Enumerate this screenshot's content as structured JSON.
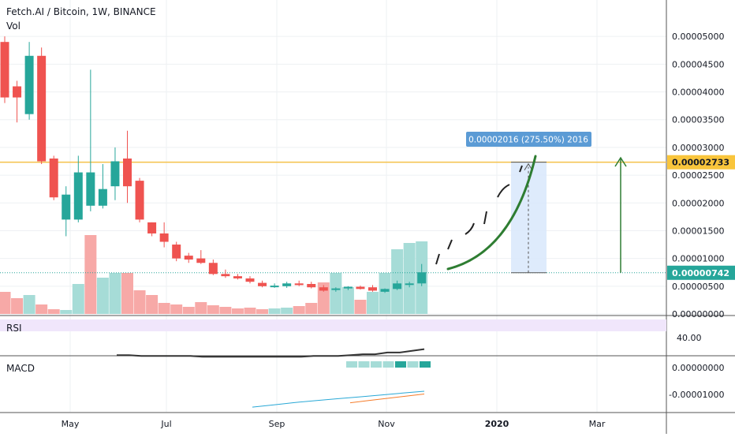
{
  "title": "Fetch.AI / Bitcoin, 1W, BINANCE",
  "volume_label": "Vol",
  "rsi_label": "RSI",
  "macd_label": "MACD",
  "colors": {
    "up": "#26a69a",
    "down": "#ef5350",
    "vol_up": "#a6dcd7",
    "vol_down": "#f7a9a7",
    "resistance": "#f5c14a",
    "projection": "#2e7d32",
    "measure_fill": "#d8e8fb",
    "measure_label_bg": "#5b9bd5",
    "rsi_band": "#f0e6fb",
    "rsi_line": "#333333",
    "macd_line": "#29a8d6",
    "signal_line": "#f57c2a",
    "current_price_bg": "#26a69a",
    "resistance_price_bg": "#f9c53c",
    "grid": "#eef0f3"
  },
  "price_axis": {
    "ticks": [
      "0.00005000",
      "0.00004500",
      "0.00004000",
      "0.00003500",
      "0.00003000",
      "0.00002500",
      "0.00002000",
      "0.00001500",
      "0.00001000",
      "0.00000500",
      "0.00000000"
    ],
    "current_price_label": "0.00000742",
    "resistance_label": "0.00002733"
  },
  "measure_label": "0.00002016 (275.50%) 2016",
  "rsi_axis": {
    "ticks": [
      "40.00"
    ]
  },
  "macd_axis": {
    "ticks": [
      "0.00000000",
      "-0.00001000"
    ]
  },
  "x_axis": {
    "ticks": [
      "May",
      "Jul",
      "Sep",
      "Nov",
      "2020",
      "Mar"
    ]
  },
  "chart_data": {
    "type": "candlestick",
    "title": "Fetch.AI / Bitcoin, 1W, BINANCE",
    "y_range": [
      0,
      5.4e-05
    ],
    "candles": [
      {
        "o": 4.9e-05,
        "h": 5e-05,
        "l": 3.8e-05,
        "c": 3.9e-05
      },
      {
        "o": 4.1e-05,
        "h": 4.2e-05,
        "l": 3.45e-05,
        "c": 3.9e-05
      },
      {
        "o": 3.6e-05,
        "h": 4.9e-05,
        "l": 3.5e-05,
        "c": 4.65e-05
      },
      {
        "o": 4.65e-05,
        "h": 4.8e-05,
        "l": 2.7e-05,
        "c": 2.75e-05
      },
      {
        "o": 2.8e-05,
        "h": 2.85e-05,
        "l": 2.05e-05,
        "c": 2.1e-05
      },
      {
        "o": 1.7e-05,
        "h": 2.3e-05,
        "l": 1.4e-05,
        "c": 2.15e-05
      },
      {
        "o": 1.7e-05,
        "h": 2.85e-05,
        "l": 1.65e-05,
        "c": 2.55e-05
      },
      {
        "o": 1.95e-05,
        "h": 4.4e-05,
        "l": 1.85e-05,
        "c": 2.55e-05
      },
      {
        "o": 1.95e-05,
        "h": 2.7e-05,
        "l": 1.9e-05,
        "c": 2.25e-05
      },
      {
        "o": 2.3e-05,
        "h": 3e-05,
        "l": 2.05e-05,
        "c": 2.75e-05
      },
      {
        "o": 2.8e-05,
        "h": 3.3e-05,
        "l": 2e-05,
        "c": 2.3e-05
      },
      {
        "o": 2.4e-05,
        "h": 2.45e-05,
        "l": 1.65e-05,
        "c": 1.7e-05
      },
      {
        "o": 1.65e-05,
        "h": 1.65e-05,
        "l": 1.4e-05,
        "c": 1.45e-05
      },
      {
        "o": 1.45e-05,
        "h": 1.65e-05,
        "l": 1.2e-05,
        "c": 1.3e-05
      },
      {
        "o": 1.25e-05,
        "h": 1.3e-05,
        "l": 9.5e-06,
        "c": 1e-05
      },
      {
        "o": 1.05e-05,
        "h": 1.1e-05,
        "l": 9.2e-06,
        "c": 9.8e-06
      },
      {
        "o": 1e-05,
        "h": 1.15e-05,
        "l": 9e-06,
        "c": 9.2e-06
      },
      {
        "o": 9.2e-06,
        "h": 9.8e-06,
        "l": 7e-06,
        "c": 7.2e-06
      },
      {
        "o": 7.2e-06,
        "h": 8e-06,
        "l": 6.5e-06,
        "c": 6.8e-06
      },
      {
        "o": 6.8e-06,
        "h": 7.2e-06,
        "l": 6.2e-06,
        "c": 6.4e-06
      },
      {
        "o": 6.4e-06,
        "h": 6.8e-06,
        "l": 5.5e-06,
        "c": 5.8e-06
      },
      {
        "o": 5.6e-06,
        "h": 6e-06,
        "l": 4.8e-06,
        "c": 5e-06
      },
      {
        "o": 4.9e-06,
        "h": 5.5e-06,
        "l": 4.7e-06,
        "c": 5.1e-06
      },
      {
        "o": 5e-06,
        "h": 5.8e-06,
        "l": 4.7e-06,
        "c": 5.5e-06
      },
      {
        "o": 5.5e-06,
        "h": 6e-06,
        "l": 5e-06,
        "c": 5.2e-06
      },
      {
        "o": 5.4e-06,
        "h": 5.8e-06,
        "l": 4.6e-06,
        "c": 4.8e-06
      },
      {
        "o": 4.8e-06,
        "h": 5.2e-06,
        "l": 4e-06,
        "c": 4.2e-06
      },
      {
        "o": 4.5e-06,
        "h": 4.8e-06,
        "l": 4e-06,
        "c": 4.6e-06
      },
      {
        "o": 4.6e-06,
        "h": 5e-06,
        "l": 4.3e-06,
        "c": 4.9e-06
      },
      {
        "o": 4.9e-06,
        "h": 5.1e-06,
        "l": 4.4e-06,
        "c": 4.5e-06
      },
      {
        "o": 4.8e-06,
        "h": 5.2e-06,
        "l": 4e-06,
        "c": 4.2e-06
      },
      {
        "o": 4e-06,
        "h": 4.6e-06,
        "l": 3.8e-06,
        "c": 4.5e-06
      },
      {
        "o": 4.5e-06,
        "h": 6e-06,
        "l": 4.3e-06,
        "c": 5.5e-06
      },
      {
        "o": 5.4e-06,
        "h": 5.8e-06,
        "l": 4.8e-06,
        "c": 5.5e-06
      },
      {
        "o": 5.5e-06,
        "h": 9e-06,
        "l": 5e-06,
        "c": 7.5e-06
      }
    ],
    "volume": [
      {
        "v": 0.28,
        "up": false
      },
      {
        "v": 0.2,
        "up": false
      },
      {
        "v": 0.24,
        "up": true
      },
      {
        "v": 0.12,
        "up": false
      },
      {
        "v": 0.06,
        "up": false
      },
      {
        "v": 0.05,
        "up": true
      },
      {
        "v": 0.38,
        "up": true
      },
      {
        "v": 1.0,
        "up": false
      },
      {
        "v": 0.46,
        "up": true
      },
      {
        "v": 0.52,
        "up": true
      },
      {
        "v": 0.52,
        "up": false
      },
      {
        "v": 0.3,
        "up": false
      },
      {
        "v": 0.24,
        "up": false
      },
      {
        "v": 0.14,
        "up": false
      },
      {
        "v": 0.12,
        "up": false
      },
      {
        "v": 0.09,
        "up": false
      },
      {
        "v": 0.15,
        "up": false
      },
      {
        "v": 0.11,
        "up": false
      },
      {
        "v": 0.09,
        "up": false
      },
      {
        "v": 0.07,
        "up": false
      },
      {
        "v": 0.08,
        "up": false
      },
      {
        "v": 0.06,
        "up": false
      },
      {
        "v": 0.07,
        "up": true
      },
      {
        "v": 0.08,
        "up": true
      },
      {
        "v": 0.1,
        "up": false
      },
      {
        "v": 0.14,
        "up": false
      },
      {
        "v": 0.4,
        "up": false
      },
      {
        "v": 0.52,
        "up": true
      },
      {
        "v": 0.34,
        "up": true
      },
      {
        "v": 0.18,
        "up": false
      },
      {
        "v": 0.28,
        "up": true
      },
      {
        "v": 0.52,
        "up": true
      },
      {
        "v": 0.82,
        "up": true
      },
      {
        "v": 0.9,
        "up": true
      },
      {
        "v": 0.92,
        "up": true
      }
    ],
    "current_price": 7.42e-06,
    "resistance_price": 2.733e-05,
    "rsi_y_range": [
      20,
      60
    ],
    "rsi": [
      31,
      31,
      30,
      30,
      30,
      30,
      30,
      29,
      29,
      29,
      29,
      29,
      29,
      29,
      29,
      29,
      30,
      30,
      30,
      31,
      32,
      32,
      34,
      34,
      36,
      38
    ],
    "macd_y_range": [
      -1.6e-05,
      1.5e-06
    ],
    "macd": [
      -1.45e-05,
      -1.38e-05,
      -1.3e-05,
      -1.24e-05,
      -1.18e-05,
      -1.12e-05,
      -1.06e-05,
      -1e-05,
      -9.4e-06
    ],
    "signal": [
      -1.31e-05,
      -1.24e-05,
      -1.17e-05,
      -1.1e-05,
      -1.03e-05
    ]
  }
}
